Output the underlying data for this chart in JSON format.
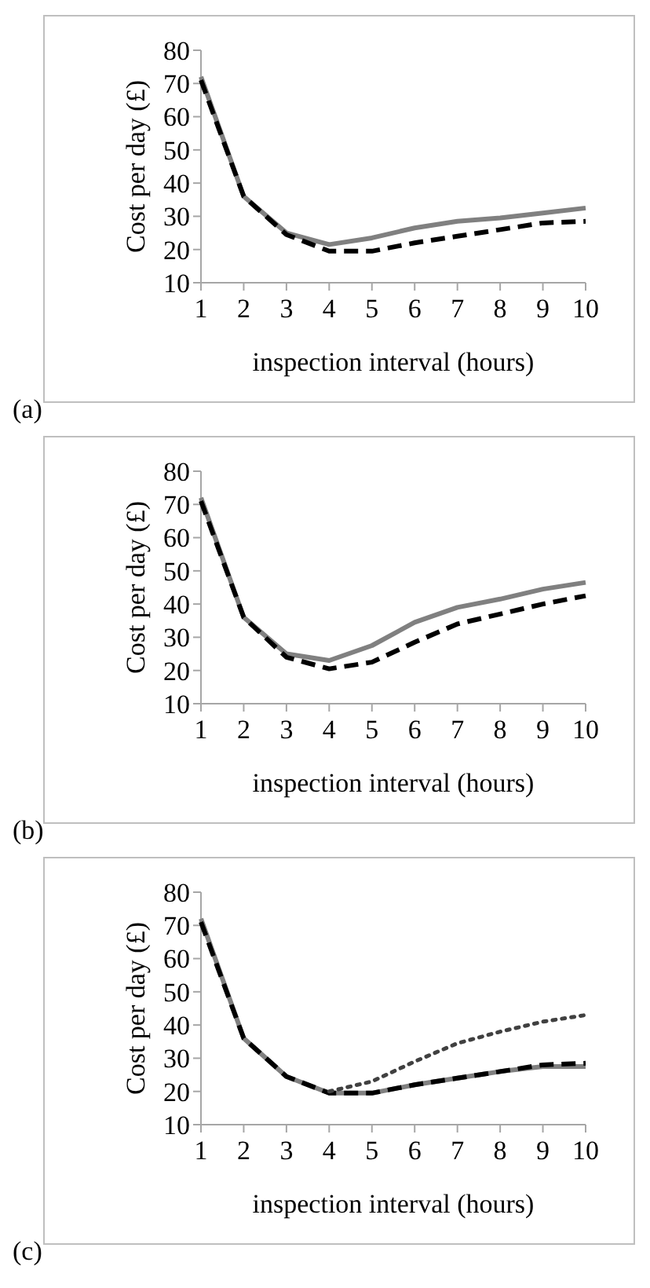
{
  "chart_data": [
    {
      "type": "line",
      "xlabel": "inspection interval (hours)",
      "ylabel": "Cost per day (£)",
      "annotations": [
        "(a)"
      ],
      "x": [
        1,
        2,
        3,
        4,
        5,
        6,
        7,
        8,
        9,
        10
      ],
      "xlim": [
        1,
        10
      ],
      "xticks": [
        1,
        2,
        3,
        4,
        5,
        6,
        7,
        8,
        9,
        10
      ],
      "ylim": [
        10,
        80
      ],
      "yticks": [
        10,
        20,
        30,
        40,
        50,
        60,
        70,
        80
      ],
      "grid": false,
      "series": [
        {
          "color": "#808080",
          "line_style": "solid",
          "values": [
            72,
            36,
            25,
            21.5,
            23.5,
            26.5,
            28.5,
            29.5,
            31,
            32.5
          ]
        },
        {
          "color": "#000000",
          "line_style": "dashed",
          "values": [
            71,
            36,
            24.5,
            19.5,
            19.5,
            22,
            24,
            26,
            28,
            28.5
          ]
        }
      ]
    },
    {
      "type": "line",
      "xlabel": "inspection interval (hours)",
      "ylabel": "Cost per day (£)",
      "annotations": [
        "(b)"
      ],
      "x": [
        1,
        2,
        3,
        4,
        5,
        6,
        7,
        8,
        9,
        10
      ],
      "xlim": [
        1,
        10
      ],
      "xticks": [
        1,
        2,
        3,
        4,
        5,
        6,
        7,
        8,
        9,
        10
      ],
      "ylim": [
        10,
        80
      ],
      "yticks": [
        10,
        20,
        30,
        40,
        50,
        60,
        70,
        80
      ],
      "grid": false,
      "series": [
        {
          "color": "#808080",
          "line_style": "solid",
          "values": [
            72,
            36,
            25,
            23,
            27.5,
            34.5,
            39,
            41.5,
            44.5,
            46.5
          ]
        },
        {
          "color": "#000000",
          "line_style": "dashed",
          "values": [
            71,
            36,
            24,
            20.5,
            22.5,
            28.5,
            34,
            37,
            40,
            42.5
          ]
        }
      ]
    },
    {
      "type": "line",
      "xlabel": "inspection interval (hours)",
      "ylabel": "Cost per day (£)",
      "annotations": [
        "(c)"
      ],
      "x": [
        1,
        2,
        3,
        4,
        5,
        6,
        7,
        8,
        9,
        10
      ],
      "xlim": [
        1,
        10
      ],
      "xticks": [
        1,
        2,
        3,
        4,
        5,
        6,
        7,
        8,
        9,
        10
      ],
      "ylim": [
        10,
        80
      ],
      "yticks": [
        10,
        20,
        30,
        40,
        50,
        60,
        70,
        80
      ],
      "grid": false,
      "series": [
        {
          "color": "#808080",
          "line_style": "solid",
          "values": [
            72,
            36,
            24.5,
            19.5,
            19.5,
            22,
            24,
            26,
            27.5,
            27.5
          ]
        },
        {
          "color": "#000000",
          "line_style": "dashed",
          "values": [
            71,
            36,
            24.5,
            19.5,
            19.5,
            22,
            24,
            26,
            28,
            28.5
          ]
        },
        {
          "color": "#404040",
          "line_style": "dotted",
          "values": [
            null,
            null,
            null,
            20,
            23,
            29,
            34.5,
            38,
            41,
            43
          ]
        }
      ]
    }
  ]
}
